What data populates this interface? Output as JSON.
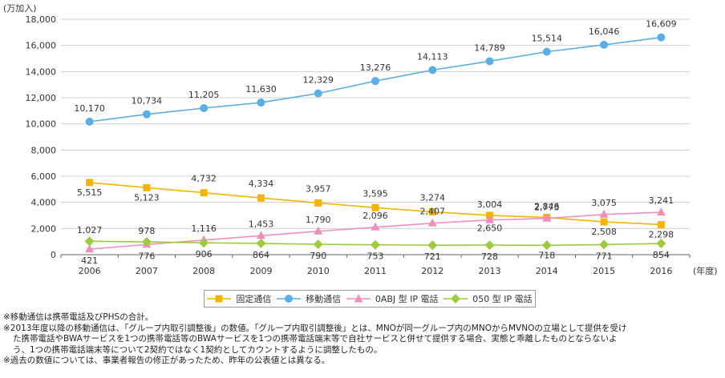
{
  "chart_data": {
    "type": "line",
    "unit_label": "(万加入)",
    "xlabel": "(年度)",
    "categories": [
      "2006",
      "2007",
      "2008",
      "2009",
      "2010",
      "2011",
      "2012",
      "2013",
      "2014",
      "2015",
      "2016"
    ],
    "ylim": [
      0,
      18000
    ],
    "yticks": [
      "0",
      "2,000",
      "4,000",
      "6,000",
      "8,000",
      "10,000",
      "12,000",
      "14,000",
      "16,000",
      "18,000"
    ],
    "grid": true,
    "legend_position": "bottom",
    "series": [
      {
        "name": "固定通信",
        "color": "#f5b400",
        "marker": "square",
        "values": [
          5515,
          5123,
          4732,
          4334,
          3957,
          3595,
          3274,
          3004,
          2846,
          2508,
          2298
        ],
        "labels": [
          "5,515",
          "5,123",
          "4,732",
          "4,334",
          "3,957",
          "3,595",
          "3,274",
          "3,004",
          "2,846",
          "2,508",
          "2,298"
        ]
      },
      {
        "name": "移動通信",
        "color": "#5aaee6",
        "marker": "circle",
        "values": [
          10170,
          10734,
          11205,
          11630,
          12329,
          13276,
          14113,
          14789,
          15514,
          16046,
          16609
        ],
        "labels": [
          "10,170",
          "10,734",
          "11,205",
          "11,630",
          "12,329",
          "13,276",
          "14,113",
          "14,789",
          "15,514",
          "16,046",
          "16,609"
        ]
      },
      {
        "name": "0ABJ 型 IP 電話",
        "color": "#ee8fc0",
        "marker": "triangle",
        "values": [
          421,
          776,
          1116,
          1453,
          1790,
          2096,
          2407,
          2650,
          2773,
          3075,
          3241
        ],
        "labels": [
          "421",
          "776",
          "1,116",
          "1,453",
          "1,790",
          "2,096",
          "2,407",
          "2,650",
          "2,773",
          "3,075",
          "3,241"
        ]
      },
      {
        "name": "050 型 IP 電話",
        "color": "#9ccb3c",
        "marker": "diamond",
        "values": [
          1027,
          978,
          906,
          864,
          790,
          753,
          721,
          728,
          718,
          771,
          854
        ],
        "labels": [
          "1,027",
          "978",
          "906",
          "864",
          "790",
          "753",
          "721",
          "728",
          "718",
          "771",
          "854"
        ]
      }
    ]
  },
  "notes": [
    "※移動通信は携帯電話及びPHSの合計。",
    "※2013年度以降の移動通信は、「グループ内取引調整後」の数値。「グループ内取引調整後」とは、MNOが同一グループ内のMNOからMVNOの立場として提供を受け",
    "た携帯電話やBWAサービスを1つの携帯電話等のBWAサービスを1つの携帯電話端末等で自社サービスと併せて提供する場合、実態と乖離したものとならないよ",
    "う、1つの携帯電話端末等について2契約ではなく1契約としてカウントするように調整したもの。",
    "※過去の数値については、事業者報告の修正があったため、昨年の公表値とは異なる。"
  ]
}
